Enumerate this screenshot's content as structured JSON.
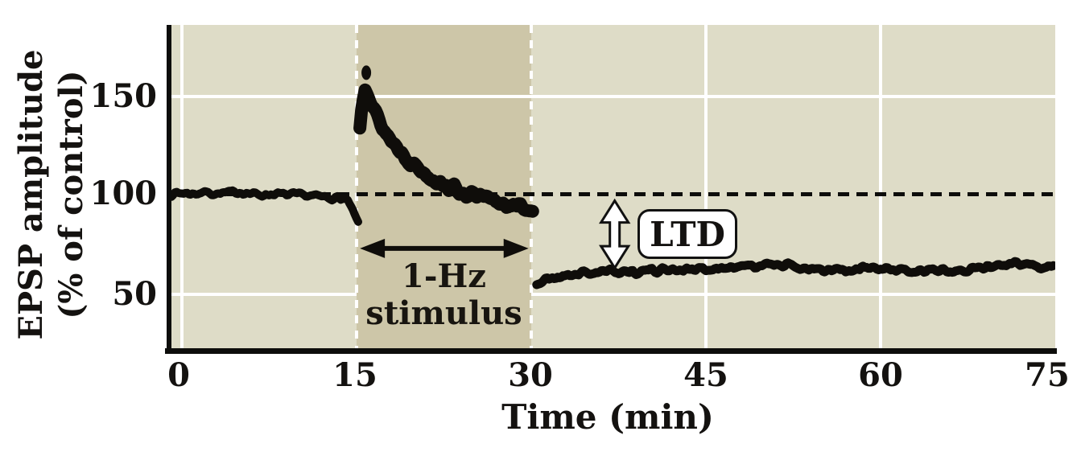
{
  "figure": {
    "ylabel_line1": "EPSP amplitude",
    "ylabel_line2": "(% of control)",
    "xlabel": "Time (min)",
    "yticks": [
      "150",
      "100",
      "50"
    ],
    "xticks": [
      "0",
      "15",
      "30",
      "45",
      "60",
      "75"
    ],
    "stimulus_label_line1": "1-Hz",
    "stimulus_label_line2": "stimulus",
    "ltd_label": "LTD"
  },
  "colors": {
    "plot_background": "#dedcc7",
    "stimulus_band": "#cdc6a8",
    "gridline": "#ffffff",
    "trace": "#0f0d0a",
    "axis": "#0d0d0b",
    "dashed_baseline": "#0d0d0b",
    "annotation_fill": "#ffffff",
    "annotation_border": "#111111",
    "text": "#141210"
  },
  "chart_data": {
    "type": "line",
    "title": "",
    "xlabel": "Time (min)",
    "ylabel": "EPSP amplitude (% of control)",
    "xlim": [
      0,
      75
    ],
    "ylim": [
      20,
      185
    ],
    "xticks": [
      0,
      15,
      30,
      45,
      60,
      75
    ],
    "yticks": [
      50,
      100,
      150
    ],
    "grid": true,
    "control_baseline_pct": 100,
    "stimulus_window_min": [
      15,
      30
    ],
    "series": [
      {
        "name": "baseline-control",
        "stroke_width": 10,
        "noise_amp": 1.6,
        "seed": 7,
        "points": [
          [
            -0.9,
            100
          ],
          [
            0,
            100.5
          ],
          [
            1,
            100
          ],
          [
            2,
            101
          ],
          [
            3,
            100
          ],
          [
            4,
            100.5
          ],
          [
            5,
            101
          ],
          [
            6,
            100
          ],
          [
            7,
            99.5
          ],
          [
            8,
            100
          ],
          [
            9,
            99.5
          ],
          [
            10,
            99.5
          ],
          [
            11,
            99
          ],
          [
            12,
            98.5
          ],
          [
            13,
            98
          ],
          [
            13.8,
            97.5
          ],
          [
            14.3,
            96
          ],
          [
            14.7,
            91
          ],
          [
            15.0,
            87
          ],
          [
            15.15,
            85
          ]
        ]
      },
      {
        "name": "during-1hz-stimulus-decay",
        "stroke_width": 16,
        "noise_amp": 3.0,
        "seed": 13,
        "points": [
          [
            15.3,
            133
          ],
          [
            15.5,
            147
          ],
          [
            15.75,
            155
          ],
          [
            16.0,
            152
          ],
          [
            16.4,
            144
          ],
          [
            17.0,
            136
          ],
          [
            17.6,
            130
          ],
          [
            18.4,
            124
          ],
          [
            19.2,
            119
          ],
          [
            20.0,
            114.5
          ],
          [
            21.0,
            110
          ],
          [
            22.0,
            106.5
          ],
          [
            23.0,
            103.5
          ],
          [
            24.0,
            101
          ],
          [
            25.0,
            99
          ],
          [
            26.0,
            97.5
          ],
          [
            27.0,
            96
          ],
          [
            28.0,
            95
          ],
          [
            28.7,
            93
          ],
          [
            29.3,
            94
          ],
          [
            29.8,
            92
          ],
          [
            30.2,
            93
          ]
        ]
      },
      {
        "name": "ltd-depressed",
        "stroke_width": 11,
        "noise_amp": 1.9,
        "seed": 21,
        "points": [
          [
            30.5,
            54.5
          ],
          [
            31,
            56
          ],
          [
            31.8,
            57.5
          ],
          [
            32.6,
            58.5
          ],
          [
            33.5,
            59.5
          ],
          [
            34.5,
            60
          ],
          [
            36,
            60.5
          ],
          [
            37.5,
            61
          ],
          [
            39,
            61
          ],
          [
            40.5,
            61.5
          ],
          [
            42,
            62
          ],
          [
            43.5,
            62
          ],
          [
            45,
            62
          ],
          [
            46.5,
            62.5
          ],
          [
            48,
            63
          ],
          [
            49.5,
            64
          ],
          [
            51,
            65
          ],
          [
            52.5,
            63.5
          ],
          [
            54,
            62
          ],
          [
            55.5,
            61
          ],
          [
            56.5,
            62
          ],
          [
            57.5,
            60
          ],
          [
            58.5,
            63
          ],
          [
            60,
            62
          ],
          [
            61.5,
            61.5
          ],
          [
            63,
            61
          ],
          [
            64.5,
            61.5
          ],
          [
            66,
            62
          ],
          [
            67.5,
            62
          ],
          [
            69,
            63
          ],
          [
            70.5,
            64
          ],
          [
            72,
            64.5
          ],
          [
            73.5,
            64
          ],
          [
            75,
            63
          ]
        ]
      }
    ],
    "extra_points": [
      {
        "x": 15.85,
        "y": 161,
        "rx": 6,
        "ry": 9
      }
    ],
    "annotations": [
      {
        "type": "hline-dashed",
        "y": 100
      },
      {
        "type": "band",
        "x0": 15,
        "x1": 30,
        "label": "1-Hz stimulus"
      },
      {
        "type": "harrow",
        "y": 72.5,
        "x0": 15.3,
        "x1": 29.8,
        "meaning": "stimulus duration"
      },
      {
        "type": "varrow",
        "x": 37.2,
        "y0": 96.5,
        "y1": 61.5,
        "meaning": "LTD magnitude"
      },
      {
        "type": "label-box",
        "text": "LTD",
        "x": 41,
        "y": 80
      }
    ],
    "legend": null
  }
}
